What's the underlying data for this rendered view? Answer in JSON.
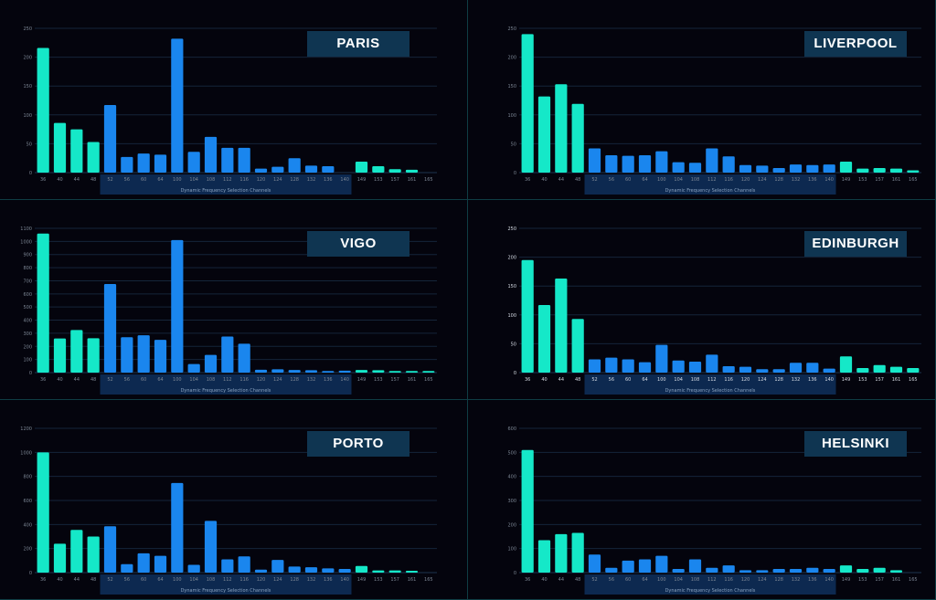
{
  "colors": {
    "uniiGreen": "#15e8c8",
    "dfsBlue": "#1a86ee",
    "band": "#0d2950",
    "grid": "#15253a",
    "background": "#04040d"
  },
  "chart_data": [
    {
      "type": "bar",
      "title": "PARIS",
      "categories": [
        "36",
        "40",
        "44",
        "48",
        "52",
        "56",
        "60",
        "64",
        "100",
        "104",
        "108",
        "112",
        "116",
        "120",
        "124",
        "128",
        "132",
        "136",
        "140",
        "149",
        "153",
        "157",
        "161",
        "165"
      ],
      "values": [
        216,
        86,
        75,
        53,
        117,
        27,
        33,
        31,
        232,
        36,
        62,
        43,
        43,
        7,
        10,
        25,
        12,
        11,
        0,
        19,
        11,
        6,
        5,
        0
      ],
      "band_label": "Dynamic Frequency Selection Channels",
      "yticks": [
        "0",
        "50",
        "100",
        "150",
        "200",
        "250"
      ],
      "ylim": [
        0,
        250
      ],
      "ylabels_visible": false
    },
    {
      "type": "bar",
      "title": "LIVERPOOL",
      "categories": [
        "36",
        "40",
        "44",
        "48",
        "52",
        "56",
        "60",
        "64",
        "100",
        "104",
        "108",
        "112",
        "116",
        "120",
        "124",
        "128",
        "132",
        "136",
        "140",
        "149",
        "153",
        "157",
        "161",
        "165"
      ],
      "values": [
        240,
        132,
        153,
        119,
        42,
        30,
        29,
        30,
        37,
        18,
        17,
        42,
        28,
        13,
        12,
        8,
        14,
        13,
        14,
        19,
        7,
        8,
        7,
        4
      ],
      "band_label": "Dynamic Frequency Selection Channels",
      "yticks": [
        "0",
        "50",
        "100",
        "150",
        "200",
        "250"
      ],
      "ylim": [
        0,
        250
      ],
      "ylabels_visible": false
    },
    {
      "type": "bar",
      "title": "VIGO",
      "categories": [
        "36",
        "40",
        "44",
        "48",
        "52",
        "56",
        "60",
        "64",
        "100",
        "104",
        "108",
        "112",
        "116",
        "120",
        "124",
        "128",
        "132",
        "136",
        "140",
        "149",
        "153",
        "157",
        "161",
        "165"
      ],
      "values": [
        1060,
        260,
        325,
        262,
        675,
        270,
        285,
        250,
        1010,
        65,
        135,
        275,
        220,
        22,
        25,
        20,
        18,
        12,
        15,
        20,
        18,
        12,
        12,
        12
      ],
      "band_label": "Dynamic Frequency Selection Channels",
      "yticks": [
        "0",
        "100",
        "200",
        "300",
        "400",
        "500",
        "600",
        "700",
        "800",
        "900",
        "1000",
        "1100"
      ],
      "ylim": [
        0,
        1100
      ],
      "ylabels_visible": false
    },
    {
      "type": "bar",
      "title": "EDINBURGH",
      "categories": [
        "36",
        "40",
        "44",
        "48",
        "52",
        "56",
        "60",
        "64",
        "100",
        "104",
        "108",
        "112",
        "116",
        "120",
        "124",
        "128",
        "132",
        "136",
        "140",
        "149",
        "153",
        "157",
        "161",
        "165"
      ],
      "values": [
        195,
        117,
        163,
        93,
        23,
        26,
        23,
        18,
        48,
        21,
        19,
        31,
        11,
        10,
        6,
        6,
        17,
        17,
        7,
        28,
        8,
        13,
        10,
        8
      ],
      "band_label": "Dynamic Frequency Selection Channels",
      "yticks": [
        "0",
        "50",
        "100",
        "150",
        "200",
        "250"
      ],
      "ylim": [
        0,
        250
      ],
      "ylabels_visible": true
    },
    {
      "type": "bar",
      "title": "PORTO",
      "categories": [
        "36",
        "40",
        "44",
        "48",
        "52",
        "56",
        "60",
        "64",
        "100",
        "104",
        "108",
        "112",
        "116",
        "120",
        "124",
        "128",
        "132",
        "136",
        "140",
        "149",
        "153",
        "157",
        "161",
        "165"
      ],
      "values": [
        1000,
        240,
        355,
        300,
        385,
        70,
        160,
        140,
        745,
        65,
        430,
        110,
        135,
        25,
        105,
        50,
        45,
        35,
        30,
        55,
        18,
        18,
        15,
        0
      ],
      "band_label": "Dynamic Frequency Selection Channels",
      "yticks": [
        "0",
        "200",
        "400",
        "600",
        "800",
        "1000",
        "1200"
      ],
      "ylim": [
        0,
        1200
      ],
      "ylabels_visible": false
    },
    {
      "type": "bar",
      "title": "HELSINKI",
      "categories": [
        "36",
        "40",
        "44",
        "48",
        "52",
        "56",
        "60",
        "64",
        "100",
        "104",
        "108",
        "112",
        "116",
        "120",
        "124",
        "128",
        "132",
        "136",
        "140",
        "149",
        "153",
        "157",
        "161",
        "165"
      ],
      "values": [
        510,
        135,
        160,
        165,
        75,
        20,
        50,
        55,
        70,
        15,
        55,
        20,
        30,
        10,
        10,
        15,
        15,
        20,
        15,
        30,
        15,
        20,
        10,
        0
      ],
      "band_label": "Dynamic Frequency Selection Channels",
      "yticks": [
        "0",
        "100",
        "200",
        "300",
        "400",
        "500",
        "600"
      ],
      "ylim": [
        0,
        600
      ],
      "ylabels_visible": false
    }
  ]
}
